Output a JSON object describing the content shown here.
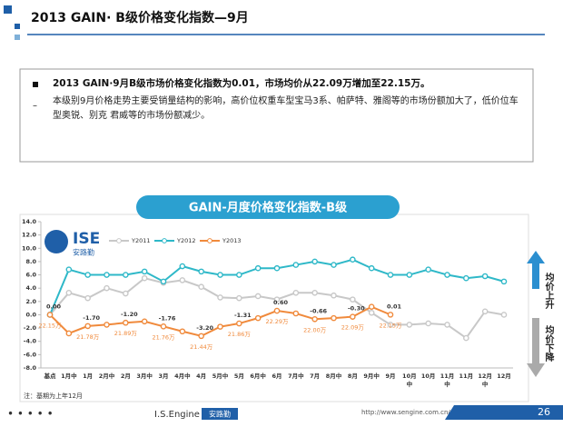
{
  "header": {
    "title": "2013 GAIN· B级价格变化指数—9月"
  },
  "summary": {
    "items": [
      "2013 GAIN·9月B级市场价格变化指数为0.01，市场均价从22.09万增加至22.15万。",
      "本级别9月价格走势主要受销量结构的影响，高价位权重车型宝马3系、帕萨特、雅阁等的市场份额加大了，低价位车型奥锐、别克 君威等的市场份额减少。"
    ]
  },
  "chart_data": {
    "type": "line",
    "title": "GAIN-月度价格变化指数-B级",
    "categories": [
      "基点",
      "1月中",
      "1月",
      "2月中",
      "2月",
      "3月中",
      "3月",
      "4月中",
      "4月",
      "5月中",
      "5月",
      "6月中",
      "6月",
      "7月中",
      "7月",
      "8月中",
      "8月",
      "9月中",
      "9月",
      "10月中",
      "10月",
      "11月中",
      "11月",
      "12月中",
      "12月"
    ],
    "series": [
      {
        "name": "Y2011",
        "color": "#c8c8c8",
        "values": [
          0,
          3.3,
          2.5,
          4.0,
          3.2,
          5.5,
          4.8,
          5.2,
          4.2,
          2.6,
          2.5,
          2.8,
          2.3,
          3.3,
          3.3,
          2.9,
          2.3,
          0.3,
          -1.5,
          -1.5,
          -1.3,
          -1.5,
          -3.5,
          0.5,
          0
        ]
      },
      {
        "name": "Y2012",
        "color": "#2eb8c8",
        "values": [
          0,
          6.8,
          6.0,
          6.0,
          6.0,
          6.5,
          5.0,
          7.3,
          6.5,
          6.0,
          6.0,
          7.0,
          7.0,
          7.5,
          8.0,
          7.5,
          8.3,
          7.0,
          6.0,
          6.0,
          6.8,
          6.0,
          5.5,
          5.8,
          5.0
        ]
      },
      {
        "name": "Y2013",
        "color": "#f08a3c",
        "values": [
          0,
          -2.8,
          -1.7,
          -1.5,
          -1.2,
          -1.0,
          -1.76,
          -2.5,
          -3.2,
          -1.8,
          -1.31,
          -0.5,
          0.6,
          0.2,
          -0.66,
          -0.5,
          -0.3,
          1.2,
          0.01,
          null,
          null,
          null,
          null,
          null,
          null
        ],
        "value_labels": [
          "0.00",
          null,
          "-1.70",
          null,
          "-1.20",
          null,
          "-1.76",
          null,
          "-3.20",
          null,
          "-1.31",
          null,
          "0.60",
          null,
          "-0.66",
          null,
          "-0.30",
          null,
          "0.01",
          null,
          null,
          null,
          null,
          null,
          null
        ],
        "price_labels": [
          "22.15万",
          null,
          "21.78万",
          null,
          "21.89万",
          null,
          "21.76万",
          null,
          "21.44万",
          null,
          "21.86万",
          null,
          "22.29万",
          null,
          "22.00万",
          null,
          "22.09万",
          null,
          "22.15万",
          null,
          null,
          null,
          null,
          null,
          null
        ]
      }
    ],
    "ylim": [
      -8,
      14
    ],
    "yticks": [
      {
        "value": -8,
        "label": "-8.0"
      },
      {
        "value": -6,
        "label": "-6.0"
      },
      {
        "value": -4,
        "label": "-4.0"
      },
      {
        "value": -2,
        "label": "-2.0"
      },
      {
        "value": 0,
        "label": "0.0"
      },
      {
        "value": 2,
        "label": "2.0"
      },
      {
        "value": 4,
        "label": "4.0"
      },
      {
        "value": 6,
        "label": "6.0"
      },
      {
        "value": 8,
        "label": "8.0"
      },
      {
        "value": 10,
        "label": "10.0"
      },
      {
        "value": 12,
        "label": "12.0"
      },
      {
        "value": 14,
        "label": "14.0"
      }
    ],
    "grid": false,
    "legend": "top"
  },
  "side_labels": {
    "up": "均价上升",
    "down": "均价下降"
  },
  "logo": {
    "mark": "ISE",
    "name": "安路勤"
  },
  "note": "注：基期为上年12月",
  "footer": {
    "brand": "I.S.Engine",
    "badge": "安路勤",
    "url": "http://www.sengine.com.cn/",
    "page": "26"
  }
}
